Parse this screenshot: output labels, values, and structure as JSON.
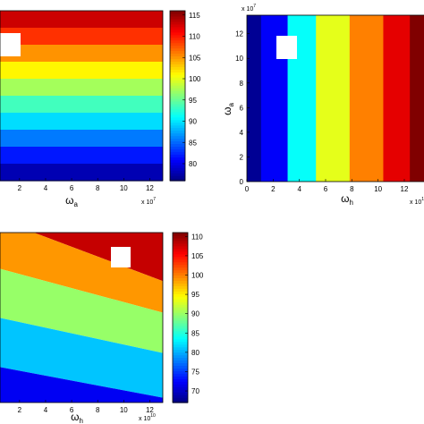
{
  "chart_data": [
    {
      "type": "heatmap",
      "name": "Panel top-left",
      "xlabel": "ω",
      "xlabel_sub": "a",
      "x_ticks": [
        "2",
        "4",
        "6",
        "8",
        "10",
        "12"
      ],
      "x_multiplier": "x 10",
      "x_multiplier_exp": "7",
      "colorbar_ticks": [
        "80",
        "85",
        "90",
        "95",
        "100",
        "105",
        "110",
        "115"
      ],
      "colorbar_range": [
        76,
        116
      ],
      "x_range": [
        0.5,
        13
      ],
      "bands_value_range": [
        78,
        113
      ],
      "band_direction": "horizontal",
      "band_count": 10,
      "marker": "white-square"
    },
    {
      "type": "heatmap",
      "name": "Panel top-right",
      "xlabel": "ω",
      "xlabel_sub": "h",
      "ylabel": "ω",
      "ylabel_sub": "a",
      "x_ticks": [
        "0",
        "2",
        "4",
        "6",
        "8",
        "10",
        "12"
      ],
      "y_ticks": [
        "0",
        "2",
        "4",
        "6",
        "8",
        "10",
        "12"
      ],
      "x_multiplier": "x 10",
      "x_multiplier_exp": "10",
      "y_multiplier": "x 10",
      "y_multiplier_exp": "7",
      "x_range": [
        0,
        13.5
      ],
      "y_range": [
        0,
        13.5
      ],
      "bands_value_range": [
        70,
        110
      ],
      "band_direction": "vertical",
      "band_count": 6,
      "marker": "white-square"
    },
    {
      "type": "heatmap",
      "name": "Panel bottom-left",
      "xlabel": "ω",
      "xlabel_sub": "h",
      "x_ticks": [
        "2",
        "4",
        "6",
        "8",
        "10",
        "12"
      ],
      "x_multiplier": "x 10",
      "x_multiplier_exp": "10",
      "colorbar_ticks": [
        "70",
        "75",
        "80",
        "85",
        "90",
        "95",
        "100",
        "105",
        "110"
      ],
      "colorbar_range": [
        67,
        111
      ],
      "x_range": [
        0.5,
        13
      ],
      "bands_value_range": [
        72,
        108
      ],
      "band_direction": "diagonal",
      "band_count": 5,
      "marker": "white-square"
    }
  ]
}
